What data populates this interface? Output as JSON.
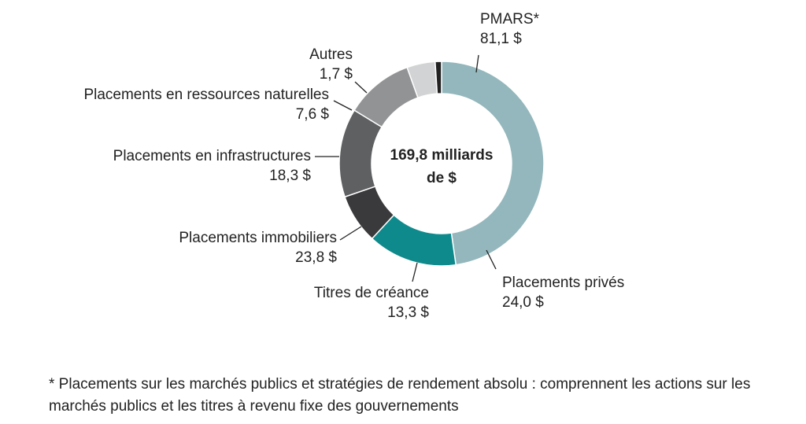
{
  "chart_data": {
    "type": "pie",
    "donut": true,
    "center_label": [
      "169,8 milliards",
      "de $"
    ],
    "categories": [
      "PMARS*",
      "Placements privés",
      "Titres de créance",
      "Placements immobiliers",
      "Placements en infrastructures",
      "Placements en ressources naturelles",
      "Autres"
    ],
    "values": [
      81.1,
      24.0,
      13.3,
      23.8,
      18.3,
      7.6,
      1.7
    ],
    "value_labels": [
      "81,1 $",
      "24,0 $",
      "13,3 $",
      "23,8 $",
      "18,3 $",
      "7,6 $",
      "1,7 $"
    ],
    "colors": [
      "#93b7bc",
      "#0f8a8c",
      "#3a3a3c",
      "#5f6062",
      "#929395",
      "#d2d3d4",
      "#222222"
    ]
  },
  "footnote": "* Placements sur les marchés publics et stratégies de rendement absolu : comprennent les actions sur les marchés publics et les titres à revenu fixe des gouvernements"
}
